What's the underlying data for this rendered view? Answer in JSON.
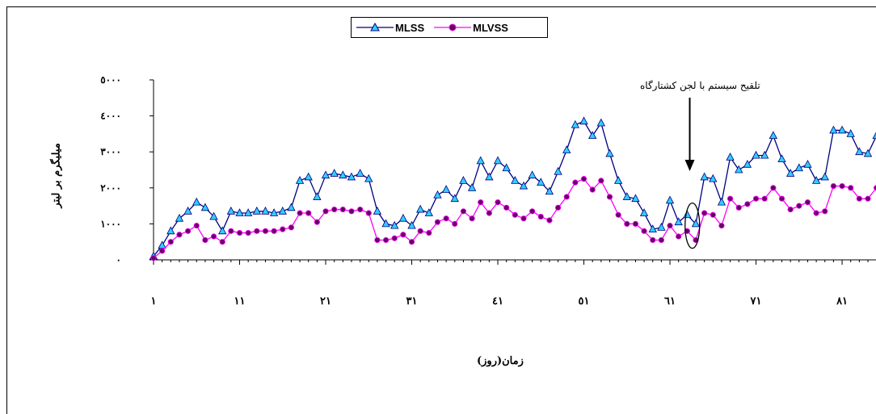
{
  "chart_data": {
    "type": "line",
    "ylabel": "میلیگرم بر لیتر",
    "xlabel": "زمان(روز)",
    "ylim": [
      0,
      5000
    ],
    "yticks": [
      0,
      1000,
      2000,
      3000,
      4000,
      5000
    ],
    "ytick_labels": [
      "٠",
      "١٠٠٠",
      "٢٠٠٠",
      "٣٠٠٠",
      "٤٠٠٠",
      "٥٠٠٠"
    ],
    "xlim": [
      1,
      84
    ],
    "xticks": [
      1,
      11,
      21,
      31,
      41,
      51,
      61,
      71,
      81
    ],
    "xtick_labels": [
      "١",
      "١١",
      "٢١",
      "٣١",
      "٤١",
      "٥١",
      "٦١",
      "٧١",
      "٨١"
    ],
    "annotation": "تلقیح سیستم با لجن کشتارگاه",
    "legend_position": "top-center",
    "grid": false,
    "series": [
      {
        "name": "MLSS",
        "color": "#000080",
        "marker": "triangle",
        "marker_color": "#33ccff",
        "values": [
          100,
          400,
          800,
          1150,
          1350,
          1600,
          1450,
          1200,
          800,
          1350,
          1300,
          1300,
          1350,
          1350,
          1300,
          1350,
          1450,
          2200,
          2300,
          1750,
          2350,
          2400,
          2350,
          2300,
          2400,
          2250,
          1350,
          1000,
          950,
          1150,
          950,
          1400,
          1300,
          1800,
          1950,
          1700,
          2200,
          2000,
          2750,
          2300,
          2750,
          2550,
          2200,
          2050,
          2350,
          2150,
          1900,
          2450,
          3050,
          3750,
          3850,
          3450,
          3800,
          2950,
          2200,
          1750,
          1700,
          1300,
          850,
          900,
          1650,
          1050,
          1250,
          1000,
          2300,
          2250,
          1600,
          2850,
          2500,
          2650,
          2900,
          2900,
          3450,
          2800,
          2400,
          2550,
          2650,
          2200,
          2300,
          3600,
          3600,
          3500,
          3000,
          2950,
          3450
        ]
      },
      {
        "name": "MLVSS",
        "color": "#ff00ff",
        "marker": "circle",
        "marker_color": "#660066",
        "values": [
          50,
          250,
          500,
          700,
          800,
          950,
          550,
          650,
          500,
          800,
          750,
          750,
          800,
          800,
          800,
          850,
          900,
          1300,
          1300,
          1050,
          1350,
          1400,
          1400,
          1350,
          1400,
          1300,
          550,
          550,
          600,
          700,
          500,
          800,
          750,
          1050,
          1150,
          1000,
          1350,
          1150,
          1600,
          1300,
          1600,
          1450,
          1250,
          1150,
          1350,
          1200,
          1100,
          1450,
          1750,
          2150,
          2250,
          1950,
          2200,
          1750,
          1250,
          1000,
          1000,
          800,
          550,
          550,
          950,
          650,
          800,
          550,
          1300,
          1250,
          950,
          1700,
          1450,
          1550,
          1700,
          1700,
          2000,
          1700,
          1400,
          1500,
          1600,
          1300,
          1350,
          2050,
          2050,
          2000,
          1700,
          1700,
          2000
        ]
      }
    ]
  }
}
